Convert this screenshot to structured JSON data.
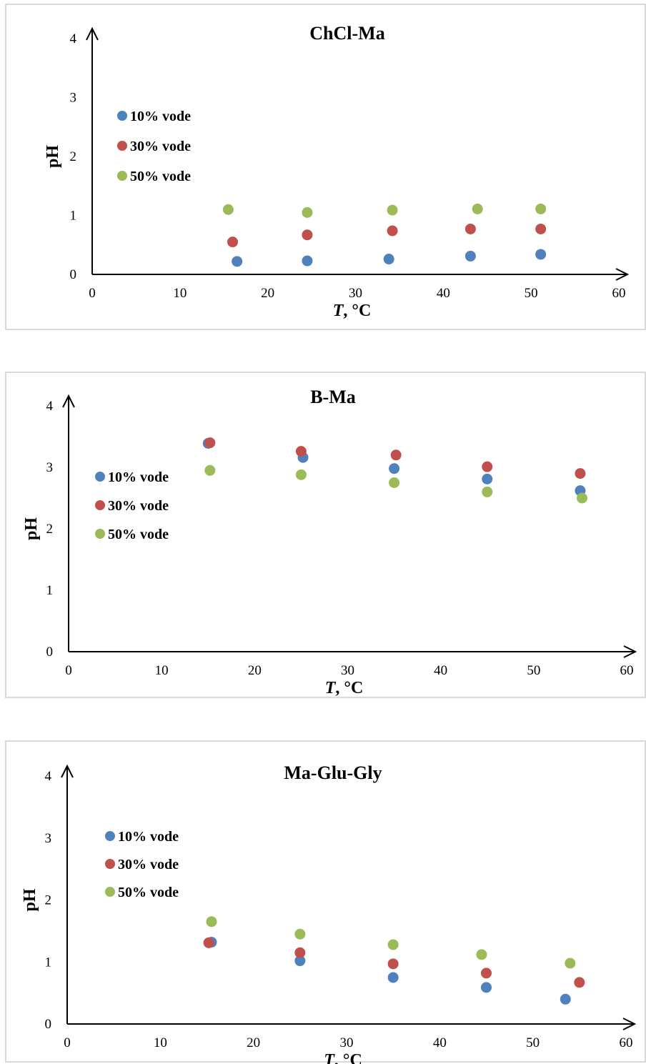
{
  "chart_data": [
    {
      "type": "scatter",
      "title": "ChCl-Ma",
      "xlabel_italic": "T",
      "xlabel_rest": ", °C",
      "ylabel": "pH",
      "xlim": [
        0,
        60
      ],
      "ylim": [
        0,
        4
      ],
      "xticks": [
        "0",
        "10",
        "20",
        "30",
        "40",
        "50",
        "60"
      ],
      "yticks": [
        "0",
        "1",
        "2",
        "3",
        "4"
      ],
      "legend_position": "left",
      "series": [
        {
          "name": "10% vode",
          "color": "#4f81bd",
          "x": [
            16.5,
            24.5,
            33.8,
            43.1,
            51.1
          ],
          "y": [
            0.22,
            0.23,
            0.26,
            0.31,
            0.34
          ]
        },
        {
          "name": "30% vode",
          "color": "#c0504d",
          "x": [
            16.0,
            24.5,
            34.2,
            43.1,
            51.1
          ],
          "y": [
            0.55,
            0.67,
            0.74,
            0.77,
            0.77
          ]
        },
        {
          "name": "50% vode",
          "color": "#9bbb59",
          "x": [
            15.5,
            24.5,
            34.2,
            43.9,
            51.1
          ],
          "y": [
            1.1,
            1.05,
            1.09,
            1.11,
            1.11
          ]
        }
      ]
    },
    {
      "type": "scatter",
      "title": "B-Ma",
      "xlabel_italic": "T",
      "xlabel_rest": ", °C",
      "ylabel": "pH",
      "xlim": [
        0,
        60
      ],
      "ylim": [
        0,
        4
      ],
      "xticks": [
        "0",
        "10",
        "20",
        "30",
        "40",
        "50",
        "60"
      ],
      "yticks": [
        "0",
        "1",
        "2",
        "3",
        "4"
      ],
      "legend_position": "left",
      "series": [
        {
          "name": "10% vode",
          "color": "#4f81bd",
          "x": [
            15.0,
            25.2,
            35.0,
            45.0,
            55.0
          ],
          "y": [
            3.39,
            3.16,
            2.98,
            2.81,
            2.62
          ]
        },
        {
          "name": "30% vode",
          "color": "#c0504d",
          "x": [
            15.2,
            25.0,
            35.2,
            45.0,
            55.0
          ],
          "y": [
            3.4,
            3.26,
            3.2,
            3.01,
            2.9
          ]
        },
        {
          "name": "50% vode",
          "color": "#9bbb59",
          "x": [
            15.2,
            25.0,
            35.0,
            45.0,
            55.2
          ],
          "y": [
            2.95,
            2.88,
            2.75,
            2.6,
            2.5
          ]
        }
      ]
    },
    {
      "type": "scatter",
      "title": "Ma-Glu-Gly",
      "xlabel_italic": "T",
      "xlabel_rest": ", °C",
      "ylabel": "pH",
      "xlim": [
        0,
        60
      ],
      "ylim": [
        0,
        4
      ],
      "xticks": [
        "0",
        "10",
        "20",
        "30",
        "40",
        "50",
        "60"
      ],
      "yticks": [
        "0",
        "1",
        "2",
        "3",
        "4"
      ],
      "legend_position": "left",
      "series": [
        {
          "name": "10% vode",
          "color": "#4f81bd",
          "x": [
            15.5,
            25.0,
            35.0,
            45.0,
            53.5
          ],
          "y": [
            1.32,
            1.02,
            0.75,
            0.59,
            0.4
          ]
        },
        {
          "name": "30% vode",
          "color": "#c0504d",
          "x": [
            15.2,
            25.0,
            35.0,
            45.0,
            55.0
          ],
          "y": [
            1.31,
            1.15,
            0.97,
            0.82,
            0.67
          ]
        },
        {
          "name": "50% vode",
          "color": "#9bbb59",
          "x": [
            15.5,
            25.0,
            35.0,
            44.5,
            54.0
          ],
          "y": [
            1.65,
            1.45,
            1.28,
            1.12,
            0.98
          ]
        }
      ]
    }
  ]
}
